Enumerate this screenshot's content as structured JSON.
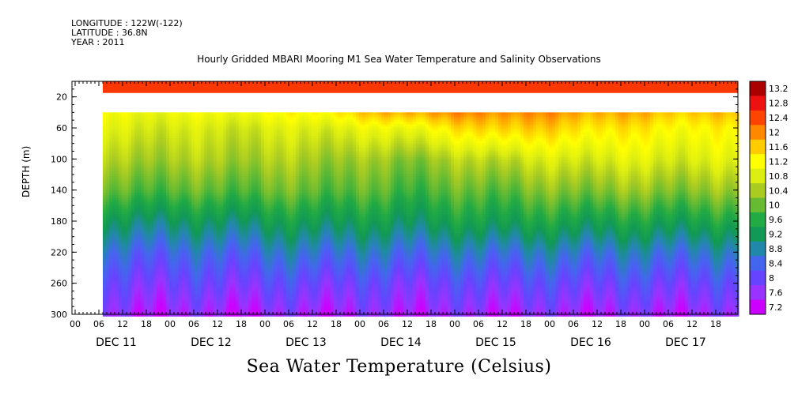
{
  "header": {
    "longitude": "LONGITUDE : 122W(-122)",
    "latitude": "LATITUDE : 36.8N",
    "year": "YEAR : 2011"
  },
  "chart_data": {
    "type": "heatmap",
    "title": "Hourly Gridded MBARI Mooring M1 Sea Water Temperature and Salinity Observations",
    "subtitle": "Sea Water Temperature (Celsius)",
    "ylabel": "DEPTH (m)",
    "xlabel": "",
    "y_ticks": [
      20,
      60,
      100,
      140,
      180,
      220,
      260,
      300
    ],
    "ylim": [
      300,
      0
    ],
    "x_hour_ticks": [
      "00",
      "06",
      "12",
      "18",
      "00",
      "06",
      "12",
      "18",
      "00",
      "06",
      "12",
      "18",
      "00",
      "06",
      "12",
      "18",
      "00",
      "06",
      "12",
      "18",
      "00",
      "06",
      "12",
      "18",
      "00",
      "06",
      "12",
      "18"
    ],
    "x_day_labels": [
      "DEC 11",
      "DEC 12",
      "DEC 13",
      "DEC 14",
      "DEC 15",
      "DEC 16",
      "DEC 17"
    ],
    "colorbar": {
      "ticks": [
        "13.2",
        "12.8",
        "12.4",
        "12",
        "11.6",
        "11.2",
        "10.8",
        "10.4",
        "10",
        "9.6",
        "9.2",
        "8.8",
        "8.4",
        "8",
        "7.6",
        "7.2"
      ],
      "range": [
        7.2,
        13.2
      ]
    },
    "data_gap_depth_m": [
      15,
      40
    ],
    "surface_temperature": 12.5,
    "profile_depths_m": [
      40,
      60,
      100,
      140,
      180,
      220,
      260,
      300
    ],
    "daily_mean_profiles": [
      {
        "day": "DEC 11",
        "temps": [
          11.0,
          10.8,
          10.4,
          9.9,
          9.1,
          8.4,
          7.9,
          7.5
        ]
      },
      {
        "day": "DEC 12",
        "temps": [
          11.0,
          10.7,
          10.4,
          9.9,
          9.1,
          8.4,
          7.9,
          7.4
        ]
      },
      {
        "day": "DEC 13",
        "temps": [
          11.2,
          10.8,
          10.4,
          10.0,
          9.3,
          8.6,
          8.0,
          7.5
        ]
      },
      {
        "day": "DEC 14",
        "temps": [
          11.8,
          11.0,
          10.2,
          9.8,
          9.2,
          8.5,
          7.9,
          7.5
        ]
      },
      {
        "day": "DEC 15",
        "temps": [
          12.0,
          11.6,
          10.6,
          10.0,
          9.4,
          8.6,
          8.0,
          7.5
        ]
      },
      {
        "day": "DEC 16",
        "temps": [
          11.8,
          11.4,
          10.8,
          10.2,
          9.4,
          8.6,
          8.0,
          7.5
        ]
      },
      {
        "day": "DEC 17",
        "temps": [
          11.6,
          11.2,
          10.8,
          10.2,
          9.4,
          8.6,
          8.0,
          7.5
        ]
      }
    ]
  }
}
